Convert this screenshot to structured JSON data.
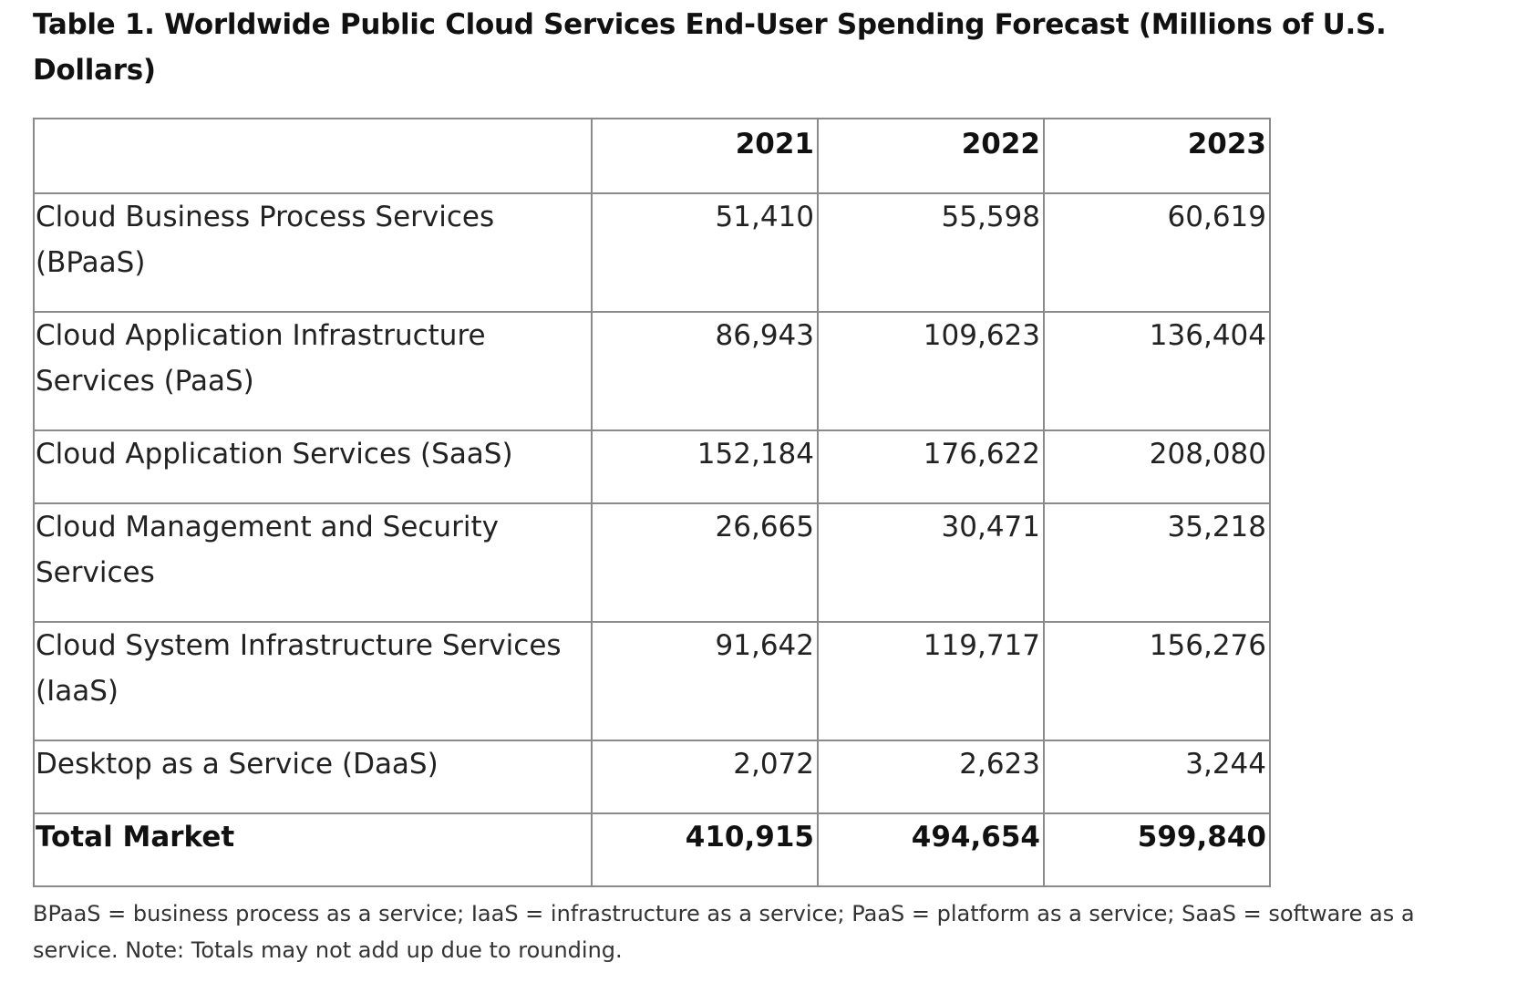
{
  "title": "Table 1. Worldwide Public Cloud Services End-User Spending Forecast (Millions of U.S. Dollars)",
  "table": {
    "header": [
      "",
      "2021",
      "2022",
      "2023"
    ],
    "rows": [
      {
        "label": "Cloud Business Process Services (BPaaS)",
        "values": [
          "51,410",
          "55,598",
          "60,619"
        ]
      },
      {
        "label": "Cloud Application Infrastructure Services (PaaS)",
        "values": [
          "86,943",
          "109,623",
          "136,404"
        ]
      },
      {
        "label": "Cloud Application Services (SaaS)",
        "values": [
          "152,184",
          "176,622",
          "208,080"
        ]
      },
      {
        "label": "Cloud Management and Security Services",
        "values": [
          "26,665",
          "30,471",
          "35,218"
        ]
      },
      {
        "label": "Cloud System Infrastructure Services (IaaS)",
        "values": [
          "91,642",
          "119,717",
          "156,276"
        ]
      },
      {
        "label": "Desktop as a Service (DaaS)",
        "values": [
          "2,072",
          "2,623",
          "3,244"
        ]
      }
    ],
    "total": {
      "label": "Total Market",
      "values": [
        "410,915",
        "494,654",
        "599,840"
      ]
    }
  },
  "footnote": "BPaaS = business process as a service; IaaS = infrastructure as a service; PaaS = platform as a service; SaaS = software as a service. Note: Totals may not add up due to rounding."
}
